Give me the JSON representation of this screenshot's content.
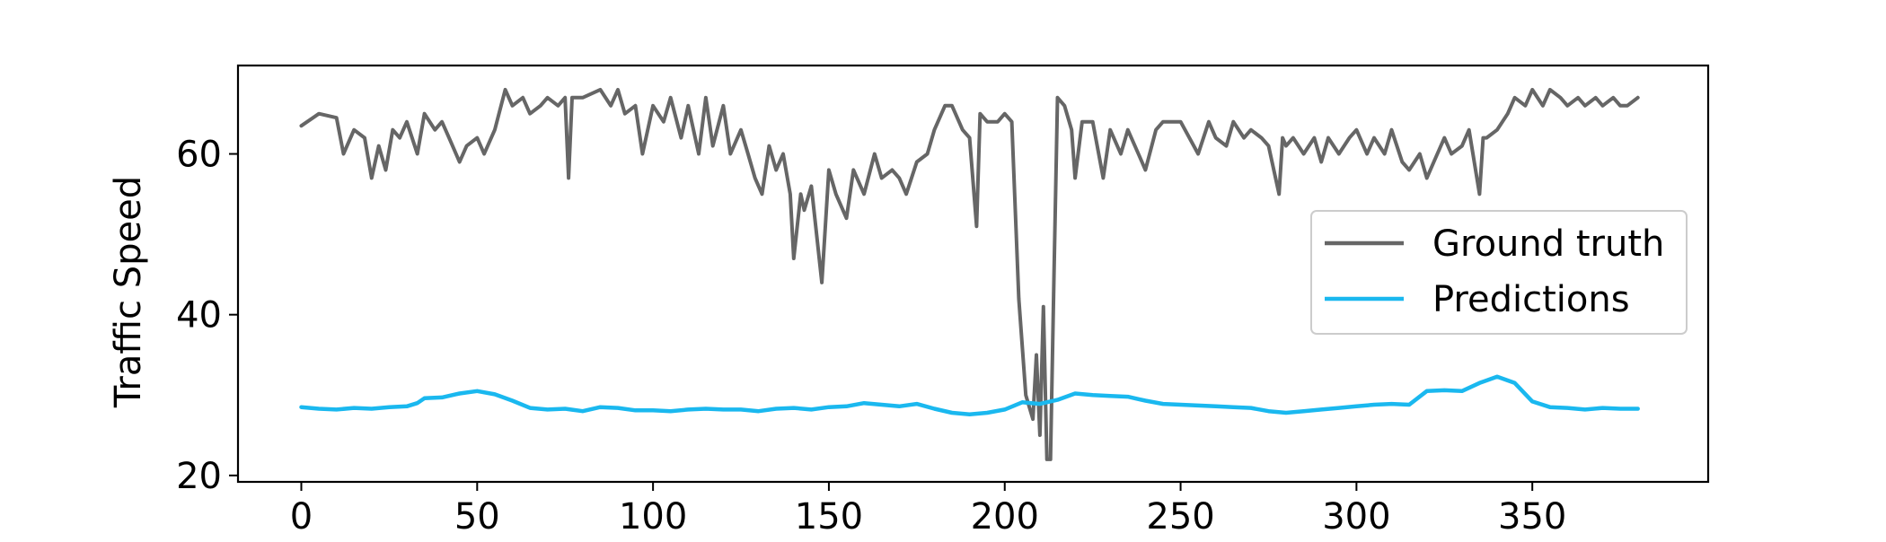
{
  "chart_data": {
    "type": "line",
    "title": "",
    "xlabel": "",
    "ylabel": "Traffic Speed",
    "xlim": [
      -18,
      400
    ],
    "ylim": [
      19.2,
      71
    ],
    "xticks": [
      0,
      50,
      100,
      150,
      200,
      250,
      300,
      350
    ],
    "yticks": [
      20,
      40,
      60
    ],
    "grid": false,
    "legend": {
      "location": "center-right",
      "entries": [
        "Ground truth",
        "Predictions"
      ]
    },
    "series": [
      {
        "name": "Ground truth",
        "color": "#666666",
        "x": [
          0,
          5,
          10,
          12,
          15,
          18,
          20,
          22,
          24,
          26,
          28,
          30,
          33,
          35,
          38,
          40,
          42,
          45,
          47,
          50,
          52,
          55,
          58,
          60,
          63,
          65,
          68,
          70,
          73,
          75,
          76,
          77,
          80,
          85,
          88,
          90,
          92,
          95,
          97,
          100,
          103,
          105,
          108,
          110,
          113,
          115,
          117,
          120,
          122,
          125,
          127,
          129,
          131,
          133,
          135,
          137,
          139,
          140,
          142,
          143,
          145,
          148,
          150,
          152,
          155,
          157,
          160,
          163,
          165,
          168,
          170,
          172,
          175,
          178,
          180,
          183,
          185,
          188,
          190,
          192,
          193,
          195,
          198,
          200,
          202,
          204,
          206,
          208,
          209,
          210,
          211,
          212,
          213,
          214,
          215,
          217,
          219,
          220,
          222,
          225,
          228,
          230,
          233,
          235,
          238,
          240,
          243,
          245,
          250,
          255,
          258,
          260,
          263,
          265,
          268,
          270,
          273,
          275,
          278,
          279,
          280,
          282,
          285,
          288,
          290,
          292,
          295,
          298,
          300,
          303,
          305,
          308,
          310,
          313,
          315,
          318,
          320,
          322,
          325,
          327,
          330,
          332,
          335,
          336,
          337,
          340,
          343,
          345,
          348,
          350,
          353,
          355,
          358,
          360,
          363,
          365,
          368,
          370,
          373,
          375,
          377,
          380
        ],
        "y": [
          63.5,
          65,
          64.5,
          60,
          63,
          62,
          57,
          61,
          58,
          63,
          62,
          64,
          60,
          65,
          63,
          64,
          62,
          59,
          61,
          62,
          60,
          63,
          68,
          66,
          67,
          65,
          66,
          67,
          66,
          67,
          57,
          67,
          67,
          68,
          66,
          68,
          65,
          66,
          60,
          66,
          64,
          67,
          62,
          66,
          60,
          67,
          61,
          66,
          60,
          63,
          60,
          57,
          55,
          61,
          58,
          60,
          55,
          47,
          55,
          53,
          56,
          44,
          58,
          55,
          52,
          58,
          55,
          60,
          57,
          58,
          57,
          55,
          59,
          60,
          63,
          66,
          66,
          63,
          62,
          51,
          65,
          64,
          64,
          65,
          64,
          42,
          30,
          27,
          35,
          25,
          41,
          22,
          22,
          45,
          67,
          66,
          63,
          57,
          64,
          64,
          57,
          63,
          60,
          63,
          60,
          58,
          63,
          64,
          64,
          60,
          64,
          62,
          61,
          64,
          62,
          63,
          62,
          61,
          55,
          62,
          61,
          62,
          60,
          62,
          59,
          62,
          60,
          62,
          63,
          60,
          62,
          60,
          63,
          59,
          58,
          60,
          57,
          59,
          62,
          60,
          61,
          63,
          55,
          62,
          62,
          63,
          65,
          67,
          66,
          68,
          66,
          68,
          67,
          66,
          67,
          66,
          67,
          66,
          67,
          66,
          66,
          67
        ]
      },
      {
        "name": "Predictions",
        "color": "#1ab8ef",
        "x": [
          0,
          5,
          10,
          15,
          20,
          25,
          30,
          33,
          35,
          40,
          45,
          50,
          55,
          60,
          65,
          70,
          75,
          80,
          85,
          90,
          95,
          100,
          105,
          110,
          115,
          120,
          125,
          130,
          135,
          140,
          145,
          150,
          155,
          160,
          165,
          170,
          175,
          180,
          185,
          190,
          195,
          200,
          205,
          210,
          215,
          220,
          225,
          230,
          235,
          240,
          245,
          250,
          255,
          260,
          265,
          270,
          275,
          280,
          285,
          290,
          295,
          300,
          305,
          310,
          315,
          320,
          325,
          330,
          335,
          340,
          345,
          350,
          355,
          360,
          365,
          370,
          375,
          380
        ],
        "y": [
          28.5,
          28.3,
          28.2,
          28.4,
          28.3,
          28.5,
          28.6,
          29.0,
          29.6,
          29.7,
          30.2,
          30.5,
          30.1,
          29.3,
          28.4,
          28.2,
          28.3,
          28.0,
          28.5,
          28.4,
          28.1,
          28.1,
          28.0,
          28.2,
          28.3,
          28.2,
          28.2,
          28.0,
          28.3,
          28.4,
          28.2,
          28.5,
          28.6,
          29.0,
          28.8,
          28.6,
          28.9,
          28.3,
          27.8,
          27.6,
          27.8,
          28.2,
          29.1,
          28.9,
          29.4,
          30.2,
          30.0,
          29.9,
          29.8,
          29.3,
          28.9,
          28.8,
          28.7,
          28.6,
          28.5,
          28.4,
          28.0,
          27.8,
          28.0,
          28.2,
          28.4,
          28.6,
          28.8,
          28.9,
          28.8,
          30.5,
          30.6,
          30.5,
          31.5,
          32.3,
          31.5,
          29.2,
          28.5,
          28.4,
          28.2,
          28.4,
          28.3,
          28.3
        ]
      }
    ]
  }
}
